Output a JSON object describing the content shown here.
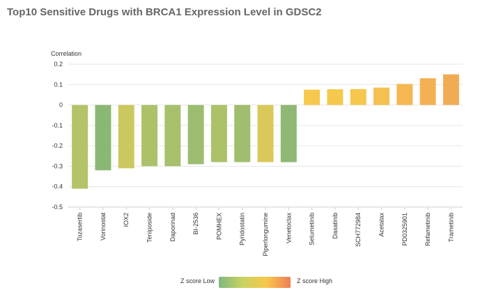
{
  "title": "Top10 Sensitive Drugs with BRCA1 Expression Level in GDSC2",
  "legend": {
    "low_label": "Z score Low",
    "high_label": "Z score High",
    "gradient": [
      "#7fb77e",
      "#c9d360",
      "#f6c84c",
      "#ef7d56"
    ]
  },
  "chart_data": {
    "type": "bar",
    "title": "Top10 Sensitive Drugs with BRCA1 Expression Level in GDSC2",
    "ylabel": "Correlation",
    "xlabel": "",
    "ylim": [
      -0.5,
      0.2
    ],
    "yticks": [
      0.2,
      0.1,
      0,
      -0.1,
      -0.2,
      -0.3,
      -0.4,
      -0.5
    ],
    "grid": true,
    "categories": [
      "Tozasertib",
      "Vorinostat",
      "IOX2",
      "Teniposide",
      "Daporinad",
      "BI-2536",
      "POMHEX",
      "Pyridostatin",
      "Piperlongumine",
      "Venetoclax",
      "Selumetinib",
      "Dasatinib",
      "SCH772984",
      "Acetalax",
      "PD0325901",
      "Refametinib",
      "Trametinib"
    ],
    "values": [
      -0.41,
      -0.32,
      -0.31,
      -0.3,
      -0.3,
      -0.29,
      -0.28,
      -0.28,
      -0.28,
      -0.28,
      0.075,
      0.077,
      0.078,
      0.085,
      0.103,
      0.131,
      0.15
    ],
    "colors": [
      "#b4c268",
      "#8bb774",
      "#ccc860",
      "#acc16a",
      "#a7c06c",
      "#9cbd6f",
      "#acc16a",
      "#a0be6e",
      "#dac85a",
      "#8eb873",
      "#f6c94e",
      "#f6c84d",
      "#f6c64d",
      "#f5c04f",
      "#f4b752",
      "#f3b154",
      "#f2ab55"
    ]
  }
}
